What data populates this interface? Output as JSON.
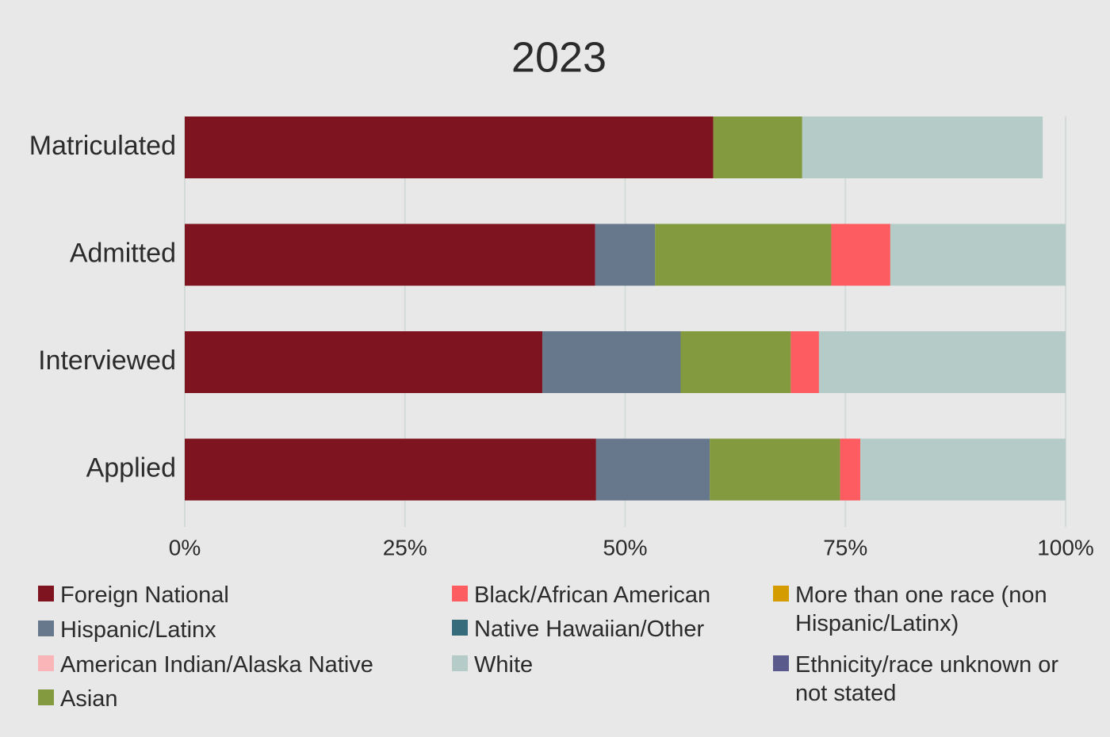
{
  "chart_data": {
    "type": "stacked-bar-horizontal",
    "title": "2023",
    "categories": [
      "Matriculated",
      "Admitted",
      "Interviewed",
      "Applied"
    ],
    "series": [
      {
        "name": "Foreign National",
        "color": "#7d1420",
        "values": [
          60.0,
          46.6,
          40.6,
          46.7
        ]
      },
      {
        "name": "Hispanic/Latinx",
        "color": "#68788c",
        "values": [
          0,
          6.8,
          15.7,
          12.9
        ]
      },
      {
        "name": "American Indian/Alaska Native",
        "color": "#f9b5b8",
        "values": [
          0,
          0,
          0,
          0
        ]
      },
      {
        "name": "Asian",
        "color": "#839a3e",
        "values": [
          10.1,
          20.0,
          12.5,
          14.8
        ]
      },
      {
        "name": "Black/African American",
        "color": "#fd5c61",
        "values": [
          0,
          6.7,
          3.2,
          2.3
        ]
      },
      {
        "name": "Native Hawaiian/Other",
        "color": "#366b7c",
        "values": [
          0,
          0,
          0,
          0
        ]
      },
      {
        "name": "White",
        "color": "#b5cbc7",
        "values": [
          27.3,
          19.9,
          28.0,
          23.3
        ]
      },
      {
        "name": "More than one race (non Hispanic/Latinx)",
        "color": "#d49c00",
        "values": [
          0,
          0,
          0,
          0
        ]
      },
      {
        "name": "Ethnicity/race unknown or not stated",
        "color": "#5a5a8c",
        "values": [
          0,
          0,
          0,
          0
        ]
      }
    ],
    "xlim": [
      0,
      100
    ],
    "xticks": [
      {
        "value": 0,
        "label": "0%"
      },
      {
        "value": 25,
        "label": "25%"
      },
      {
        "value": 50,
        "label": "50%"
      },
      {
        "value": 75,
        "label": "75%"
      },
      {
        "value": 100,
        "label": "100%"
      }
    ],
    "grid": true
  }
}
